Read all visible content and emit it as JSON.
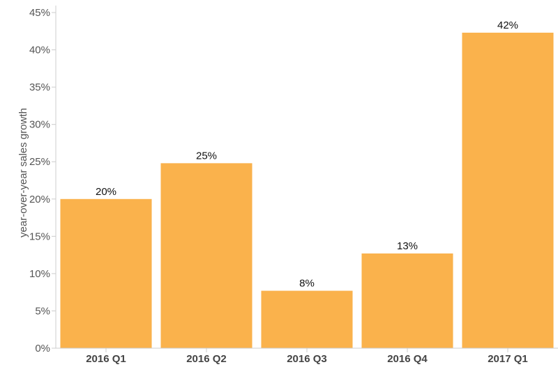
{
  "chart_data": {
    "type": "bar",
    "categories": [
      "2016 Q1",
      "2016 Q2",
      "2016 Q3",
      "2016 Q4",
      "2017 Q1"
    ],
    "values": [
      20,
      25,
      8,
      13,
      42
    ],
    "plotted_values": [
      20.0,
      24.8,
      7.7,
      12.7,
      42.3
    ],
    "data_labels": [
      "20%",
      "25%",
      "8%",
      "13%",
      "42%"
    ],
    "ylabel": "year-over-year sales growth",
    "xlabel": "",
    "ylim": [
      0,
      45
    ],
    "yticks": [
      0,
      5,
      10,
      15,
      20,
      25,
      30,
      35,
      40,
      45
    ],
    "ytick_labels": [
      "0%",
      "5%",
      "10%",
      "15%",
      "20%",
      "25%",
      "30%",
      "35%",
      "40%",
      "45%"
    ],
    "bar_color": "#fab24c",
    "grid": false
  }
}
